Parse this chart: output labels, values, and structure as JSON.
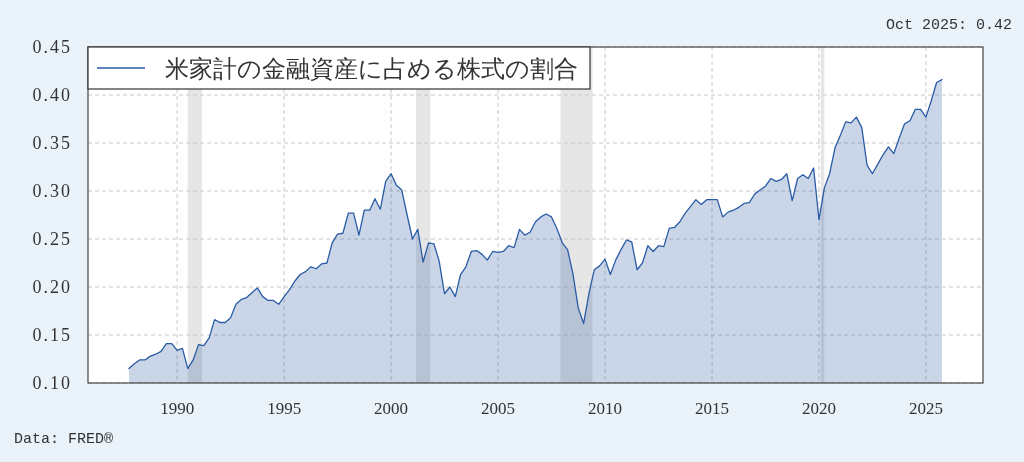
{
  "chart_data": {
    "type": "area",
    "x": [
      "1987-10",
      "1988-01",
      "1988-04",
      "1988-07",
      "1988-10",
      "1989-01",
      "1989-04",
      "1989-07",
      "1989-10",
      "1990-01",
      "1990-04",
      "1990-07",
      "1990-10",
      "1991-01",
      "1991-04",
      "1991-07",
      "1991-10",
      "1992-01",
      "1992-04",
      "1992-07",
      "1992-10",
      "1993-01",
      "1993-04",
      "1993-07",
      "1993-10",
      "1994-01",
      "1994-04",
      "1994-07",
      "1994-10",
      "1995-01",
      "1995-04",
      "1995-07",
      "1995-10",
      "1996-01",
      "1996-04",
      "1996-07",
      "1996-10",
      "1997-01",
      "1997-04",
      "1997-07",
      "1997-10",
      "1998-01",
      "1998-04",
      "1998-07",
      "1998-10",
      "1999-01",
      "1999-04",
      "1999-07",
      "1999-10",
      "2000-01",
      "2000-04",
      "2000-07",
      "2000-10",
      "2001-01",
      "2001-04",
      "2001-07",
      "2001-10",
      "2002-01",
      "2002-04",
      "2002-07",
      "2002-10",
      "2003-01",
      "2003-04",
      "2003-07",
      "2003-10",
      "2004-01",
      "2004-04",
      "2004-07",
      "2004-10",
      "2005-01",
      "2005-04",
      "2005-07",
      "2005-10",
      "2006-01",
      "2006-04",
      "2006-07",
      "2006-10",
      "2007-01",
      "2007-04",
      "2007-07",
      "2007-10",
      "2008-01",
      "2008-04",
      "2008-07",
      "2008-10",
      "2009-01",
      "2009-04",
      "2009-07",
      "2009-10",
      "2010-01",
      "2010-04",
      "2010-07",
      "2010-10",
      "2011-01",
      "2011-04",
      "2011-07",
      "2011-10",
      "2012-01",
      "2012-04",
      "2012-07",
      "2012-10",
      "2013-01",
      "2013-04",
      "2013-07",
      "2013-10",
      "2014-01",
      "2014-04",
      "2014-07",
      "2014-10",
      "2015-01",
      "2015-04",
      "2015-07",
      "2015-10",
      "2016-01",
      "2016-04",
      "2016-07",
      "2016-10",
      "2017-01",
      "2017-04",
      "2017-07",
      "2017-10",
      "2018-01",
      "2018-04",
      "2018-07",
      "2018-10",
      "2019-01",
      "2019-04",
      "2019-07",
      "2019-10",
      "2020-01",
      "2020-04",
      "2020-07",
      "2020-10",
      "2021-01",
      "2021-04",
      "2021-07",
      "2021-10",
      "2022-01",
      "2022-04",
      "2022-07",
      "2022-10",
      "2023-01",
      "2023-04",
      "2023-07",
      "2023-10",
      "2024-01",
      "2024-04",
      "2024-07",
      "2024-10",
      "2025-01",
      "2025-04",
      "2025-07",
      "2025-10"
    ],
    "series": [
      {
        "name": "米家計の金融資産に占める株式の割合",
        "color": "#2a5ba5",
        "values": [
          0.115,
          0.12,
          0.124,
          0.124,
          0.128,
          0.13,
          0.133,
          0.141,
          0.141,
          0.134,
          0.136,
          0.115,
          0.124,
          0.14,
          0.139,
          0.147,
          0.166,
          0.163,
          0.163,
          0.168,
          0.182,
          0.187,
          0.189,
          0.194,
          0.199,
          0.19,
          0.186,
          0.186,
          0.182,
          0.19,
          0.197,
          0.206,
          0.213,
          0.216,
          0.221,
          0.219,
          0.224,
          0.225,
          0.246,
          0.255,
          0.256,
          0.277,
          0.277,
          0.254,
          0.28,
          0.28,
          0.292,
          0.281,
          0.31,
          0.318,
          0.306,
          0.301,
          0.275,
          0.25,
          0.26,
          0.226,
          0.246,
          0.245,
          0.227,
          0.193,
          0.2,
          0.19,
          0.213,
          0.221,
          0.237,
          0.238,
          0.234,
          0.228,
          0.237,
          0.236,
          0.237,
          0.243,
          0.241,
          0.26,
          0.254,
          0.257,
          0.268,
          0.273,
          0.276,
          0.273,
          0.261,
          0.246,
          0.239,
          0.214,
          0.178,
          0.162,
          0.193,
          0.218,
          0.222,
          0.229,
          0.213,
          0.228,
          0.239,
          0.249,
          0.247,
          0.218,
          0.225,
          0.243,
          0.237,
          0.243,
          0.242,
          0.261,
          0.262,
          0.268,
          0.277,
          0.284,
          0.291,
          0.286,
          0.291,
          0.291,
          0.291,
          0.273,
          0.278,
          0.28,
          0.283,
          0.287,
          0.288,
          0.297,
          0.301,
          0.305,
          0.313,
          0.31,
          0.312,
          0.318,
          0.29,
          0.313,
          0.317,
          0.313,
          0.324,
          0.27,
          0.303,
          0.318,
          0.345,
          0.358,
          0.372,
          0.371,
          0.377,
          0.366,
          0.327,
          0.318,
          0.328,
          0.338,
          0.346,
          0.339,
          0.355,
          0.37,
          0.373,
          0.385,
          0.385,
          0.377,
          0.394,
          0.413,
          0.416
        ]
      }
    ],
    "xlim": [
      "1985-11",
      "2027-09"
    ],
    "xticks": [
      "1990",
      "1995",
      "2000",
      "2005",
      "2010",
      "2015",
      "2020",
      "2025"
    ],
    "ylim": [
      0.1,
      0.45
    ],
    "yticks": [
      {
        "value": 0.1,
        "label": "0.10"
      },
      {
        "value": 0.15,
        "label": "0.15"
      },
      {
        "value": 0.2,
        "label": "0.20"
      },
      {
        "value": 0.25,
        "label": "0.25"
      },
      {
        "value": 0.3,
        "label": "0.30"
      },
      {
        "value": 0.35,
        "label": "0.35"
      },
      {
        "value": 0.4,
        "label": "0.40"
      },
      {
        "value": 0.45,
        "label": "0.45"
      }
    ],
    "bands": [
      {
        "axis": "x",
        "from": "1990-07",
        "to": "1991-03",
        "color": "#e6e6e6"
      },
      {
        "axis": "x",
        "from": "2001-03",
        "to": "2001-11",
        "color": "#e6e6e6"
      },
      {
        "axis": "x",
        "from": "2007-12",
        "to": "2009-06",
        "color": "#e6e6e6"
      },
      {
        "axis": "x",
        "from": "2020-02",
        "to": "2020-04",
        "color": "#e6e6e6"
      }
    ],
    "grid": true,
    "legend": "top left",
    "annotations": [
      "Oct 2025: 0.42",
      "Data: FRED®"
    ]
  }
}
